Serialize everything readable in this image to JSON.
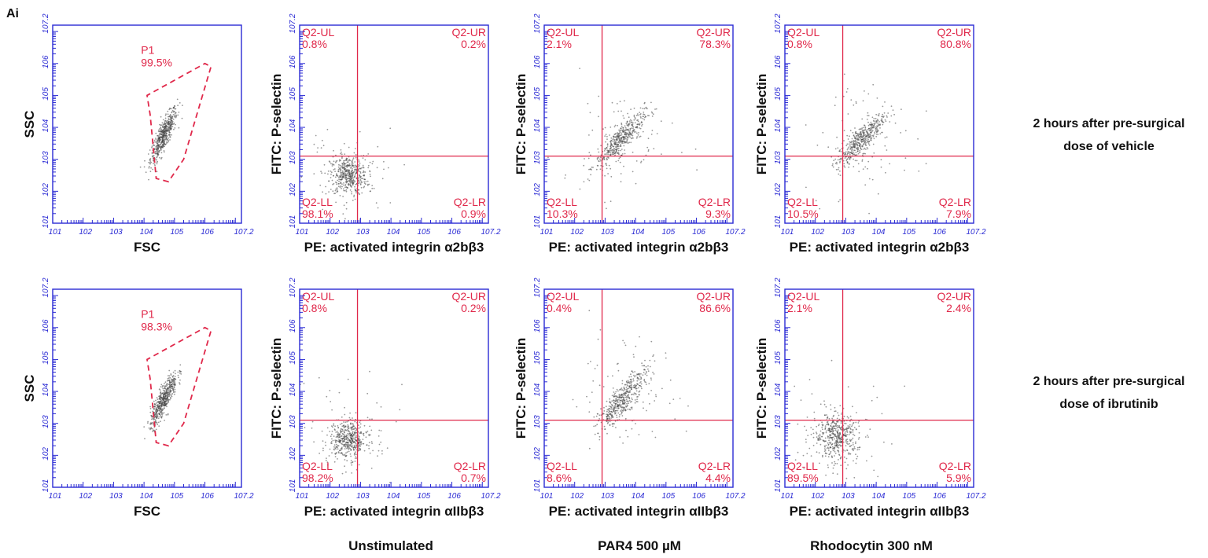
{
  "figure_label": "Ai",
  "row_labels": [
    [
      "2 hours after pre-surgical",
      "dose of vehicle"
    ],
    [
      "2 hours after pre-surgical",
      "dose of ibrutinib"
    ]
  ],
  "column_labels": [
    "Unstimulated",
    "PAR4 500 µM",
    "Rhodocytin 300 nM"
  ],
  "colors": {
    "axis": "#2a2ad4",
    "gate": "#e0284a",
    "quadrant_lines": "#e0284a",
    "events": "#444444"
  },
  "chart_data": [
    {
      "type": "scatter",
      "row": 0,
      "col": 0,
      "xlabel": "FSC",
      "ylabel": "SSC",
      "scale": "log10",
      "xlim": [
        1,
        7.2
      ],
      "ylim": [
        1,
        7.2
      ],
      "x_ticks": [
        "10^1",
        "10^2",
        "10^3",
        "10^4",
        "10^5",
        "10^6",
        "10^7.2"
      ],
      "y_ticks": [
        "10^1",
        "10^2",
        "10^3",
        "10^4",
        "10^5",
        "10^6",
        "10^7.2"
      ],
      "gate": {
        "name": "P1",
        "percent": "99.5%",
        "polygon_log": [
          [
            4.8,
            2.3
          ],
          [
            4.4,
            2.4
          ],
          [
            4.2,
            4.4
          ],
          [
            4.1,
            5.0
          ],
          [
            6.0,
            6.0
          ],
          [
            6.2,
            5.9
          ],
          [
            5.3,
            3.0
          ]
        ]
      },
      "population": {
        "center_log": [
          4.65,
          3.75
        ],
        "spread_log": [
          0.22,
          0.45
        ]
      }
    },
    {
      "type": "scatter",
      "row": 0,
      "col": 1,
      "xlabel": "PE: activated integrin α2bβ3",
      "ylabel": "FITC: P-selectin",
      "scale": "log10",
      "xlim": [
        1,
        7.2
      ],
      "ylim": [
        1,
        7.2
      ],
      "x_ticks": [
        "10^1",
        "10^2",
        "10^3",
        "10^4",
        "10^5",
        "10^6",
        "10^7.2"
      ],
      "y_ticks": [
        "10^1",
        "10^2",
        "10^3",
        "10^4",
        "10^5",
        "10^6",
        "10^7.2"
      ],
      "quadrant_divider_log": [
        2.9,
        3.1
      ],
      "quadrants": {
        "UL": {
          "name": "Q2-UL",
          "percent": "0.8%"
        },
        "UR": {
          "name": "Q2-UR",
          "percent": "0.2%"
        },
        "LL": {
          "name": "Q2-LL",
          "percent": "98.1%"
        },
        "LR": {
          "name": "Q2-LR",
          "percent": "0.9%"
        }
      },
      "population": {
        "center_log": [
          2.6,
          2.5
        ],
        "spread_log": [
          0.3,
          0.3
        ]
      }
    },
    {
      "type": "scatter",
      "row": 0,
      "col": 2,
      "xlabel": "PE: activated integrin α2bβ3",
      "ylabel": "FITC: P-selectin",
      "scale": "log10",
      "xlim": [
        1,
        7.2
      ],
      "ylim": [
        1,
        7.2
      ],
      "x_ticks": [
        "10^1",
        "10^2",
        "10^3",
        "10^4",
        "10^5",
        "10^6",
        "10^7.2"
      ],
      "y_ticks": [
        "10^1",
        "10^2",
        "10^3",
        "10^4",
        "10^5",
        "10^6",
        "10^7.2"
      ],
      "quadrant_divider_log": [
        2.9,
        3.1
      ],
      "quadrants": {
        "UL": {
          "name": "Q2-UL",
          "percent": "2.1%"
        },
        "UR": {
          "name": "Q2-UR",
          "percent": "78.3%"
        },
        "LL": {
          "name": "Q2-LL",
          "percent": "10.3%"
        },
        "LR": {
          "name": "Q2-LR",
          "percent": "9.3%"
        }
      },
      "population": {
        "center_log": [
          3.5,
          3.6
        ],
        "spread_log": [
          0.4,
          0.45
        ]
      }
    },
    {
      "type": "scatter",
      "row": 0,
      "col": 3,
      "xlabel": "PE: activated integrin α2bβ3",
      "ylabel": "FITC: P-selectin",
      "scale": "log10",
      "xlim": [
        1,
        7.2
      ],
      "ylim": [
        1,
        7.2
      ],
      "x_ticks": [
        "10^1",
        "10^2",
        "10^3",
        "10^4",
        "10^5",
        "10^6",
        "10^7.2"
      ],
      "y_ticks": [
        "10^1",
        "10^2",
        "10^3",
        "10^4",
        "10^5",
        "10^6",
        "10^7.2"
      ],
      "quadrant_divider_log": [
        2.9,
        3.1
      ],
      "quadrants": {
        "UL": {
          "name": "Q2-UL",
          "percent": "0.8%"
        },
        "UR": {
          "name": "Q2-UR",
          "percent": "80.8%"
        },
        "LL": {
          "name": "Q2-LL",
          "percent": "10.5%"
        },
        "LR": {
          "name": "Q2-LR",
          "percent": "7.9%"
        }
      },
      "population": {
        "center_log": [
          3.5,
          3.6
        ],
        "spread_log": [
          0.4,
          0.45
        ]
      }
    },
    {
      "type": "scatter",
      "row": 1,
      "col": 0,
      "xlabel": "FSC",
      "ylabel": "SSC",
      "scale": "log10",
      "xlim": [
        1,
        7.2
      ],
      "ylim": [
        1,
        7.2
      ],
      "x_ticks": [
        "10^1",
        "10^2",
        "10^3",
        "10^4",
        "10^5",
        "10^6",
        "10^7.2"
      ],
      "y_ticks": [
        "10^1",
        "10^2",
        "10^3",
        "10^4",
        "10^5",
        "10^6",
        "10^7.2"
      ],
      "gate": {
        "name": "P1",
        "percent": "98.3%",
        "polygon_log": [
          [
            4.8,
            2.3
          ],
          [
            4.4,
            2.4
          ],
          [
            4.2,
            4.4
          ],
          [
            4.1,
            5.0
          ],
          [
            6.0,
            6.0
          ],
          [
            6.2,
            5.9
          ],
          [
            5.3,
            3.0
          ]
        ]
      },
      "population": {
        "center_log": [
          4.65,
          3.75
        ],
        "spread_log": [
          0.22,
          0.45
        ]
      }
    },
    {
      "type": "scatter",
      "row": 1,
      "col": 1,
      "xlabel": "PE: activated integrin αIIbβ3",
      "ylabel": "FITC: P-selectin",
      "scale": "log10",
      "xlim": [
        1,
        7.2
      ],
      "ylim": [
        1,
        7.2
      ],
      "x_ticks": [
        "10^1",
        "10^2",
        "10^3",
        "10^4",
        "10^5",
        "10^6",
        "10^7.2"
      ],
      "y_ticks": [
        "10^1",
        "10^2",
        "10^3",
        "10^4",
        "10^5",
        "10^6",
        "10^7.2"
      ],
      "quadrant_divider_log": [
        2.9,
        3.1
      ],
      "quadrants": {
        "UL": {
          "name": "Q2-UL",
          "percent": "0.8%"
        },
        "UR": {
          "name": "Q2-UR",
          "percent": "0.2%"
        },
        "LL": {
          "name": "Q2-LL",
          "percent": "98.2%"
        },
        "LR": {
          "name": "Q2-LR",
          "percent": "0.7%"
        }
      },
      "population": {
        "center_log": [
          2.6,
          2.5
        ],
        "spread_log": [
          0.3,
          0.3
        ]
      }
    },
    {
      "type": "scatter",
      "row": 1,
      "col": 2,
      "xlabel": "PE: activated integrin αIIbβ3",
      "ylabel": "FITC: P-selectin",
      "scale": "log10",
      "xlim": [
        1,
        7.2
      ],
      "ylim": [
        1,
        7.2
      ],
      "x_ticks": [
        "10^1",
        "10^2",
        "10^3",
        "10^4",
        "10^5",
        "10^6",
        "10^7.2"
      ],
      "y_ticks": [
        "10^1",
        "10^2",
        "10^3",
        "10^4",
        "10^5",
        "10^6",
        "10^7.2"
      ],
      "quadrant_divider_log": [
        2.9,
        3.1
      ],
      "quadrants": {
        "UL": {
          "name": "Q2-UL",
          "percent": "0.4%"
        },
        "UR": {
          "name": "Q2-UR",
          "percent": "86.6%"
        },
        "LL": {
          "name": "Q2-LL",
          "percent": "8.6%"
        },
        "LR": {
          "name": "Q2-LR",
          "percent": "4.4%"
        }
      },
      "population": {
        "center_log": [
          3.6,
          3.8
        ],
        "spread_log": [
          0.4,
          0.5
        ]
      }
    },
    {
      "type": "scatter",
      "row": 1,
      "col": 3,
      "xlabel": "PE: activated integrin αIIbβ3",
      "ylabel": "FITC: P-selectin",
      "scale": "log10",
      "xlim": [
        1,
        7.2
      ],
      "ylim": [
        1,
        7.2
      ],
      "x_ticks": [
        "10^1",
        "10^2",
        "10^3",
        "10^4",
        "10^5",
        "10^6",
        "10^7.2"
      ],
      "y_ticks": [
        "10^1",
        "10^2",
        "10^3",
        "10^4",
        "10^5",
        "10^6",
        "10^7.2"
      ],
      "quadrant_divider_log": [
        2.9,
        3.1
      ],
      "quadrants": {
        "UL": {
          "name": "Q2-UL",
          "percent": "2.1%"
        },
        "UR": {
          "name": "Q2-UR",
          "percent": "2.4%"
        },
        "LL": {
          "name": "Q2-LL",
          "percent": "89.5%"
        },
        "LR": {
          "name": "Q2-LR",
          "percent": "5.9%"
        }
      },
      "population": {
        "center_log": [
          2.7,
          2.6
        ],
        "spread_log": [
          0.35,
          0.35
        ]
      }
    }
  ]
}
